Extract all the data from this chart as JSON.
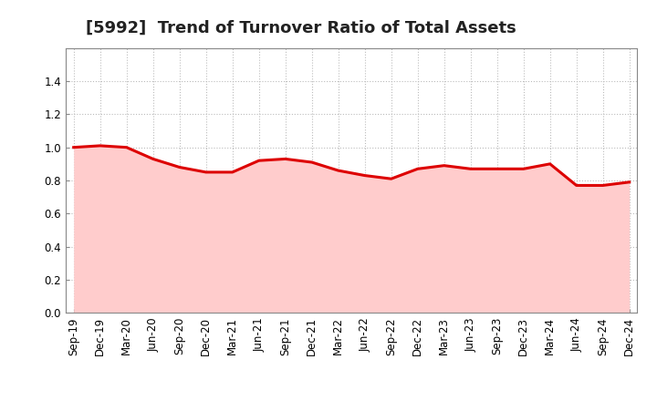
{
  "title": "[5992]  Trend of Turnover Ratio of Total Assets",
  "x_labels": [
    "Sep-19",
    "Dec-19",
    "Mar-20",
    "Jun-20",
    "Sep-20",
    "Dec-20",
    "Mar-21",
    "Jun-21",
    "Sep-21",
    "Dec-21",
    "Mar-22",
    "Jun-22",
    "Sep-22",
    "Dec-22",
    "Mar-23",
    "Jun-23",
    "Sep-23",
    "Dec-23",
    "Mar-24",
    "Jun-24",
    "Sep-24",
    "Dec-24"
  ],
  "y_values": [
    1.0,
    1.01,
    1.0,
    0.93,
    0.88,
    0.85,
    0.85,
    0.92,
    0.93,
    0.91,
    0.86,
    0.83,
    0.81,
    0.87,
    0.89,
    0.87,
    0.87,
    0.87,
    0.9,
    0.77,
    0.77,
    0.79
  ],
  "line_color": "#dd0000",
  "fill_color": "#ffcccc",
  "ylim": [
    0.0,
    1.6
  ],
  "yticks": [
    0.0,
    0.2,
    0.4,
    0.6,
    0.8,
    1.0,
    1.2,
    1.4
  ],
  "grid_color": "#bbbbbb",
  "background_color": "#ffffff",
  "title_fontsize": 13,
  "tick_fontsize": 8.5,
  "line_width": 2.2
}
